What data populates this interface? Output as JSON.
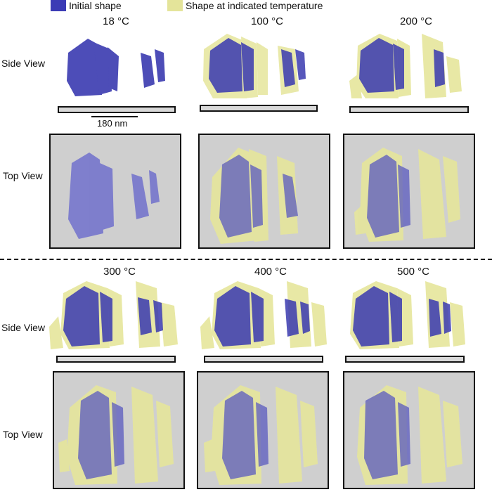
{
  "legend": {
    "initial": {
      "label": "Initial shape",
      "color": "#3b3bb5"
    },
    "heated": {
      "label": "Shape at indicated temperature",
      "color": "#e4e49a"
    }
  },
  "row_labels": {
    "side": "Side View",
    "top": "Top View"
  },
  "scale_bar": {
    "label": "180 nm"
  },
  "panels": [
    {
      "temperature": "18 °C"
    },
    {
      "temperature": "100 °C"
    },
    {
      "temperature": "200 °C"
    },
    {
      "temperature": "300 °C"
    },
    {
      "temperature": "400 °C"
    },
    {
      "temperature": "500 °C"
    }
  ],
  "colors": {
    "initial_fill": "#3a3ab0",
    "heated_fill": "#e6e69c",
    "top_background": "#cfcfcf",
    "substrate": "#d8d8d8"
  }
}
